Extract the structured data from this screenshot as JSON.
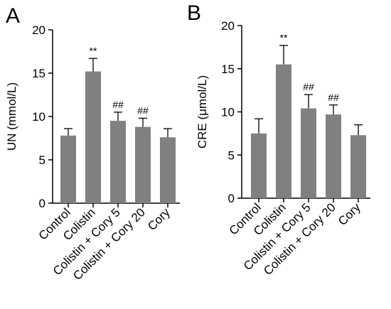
{
  "chart_data": [
    {
      "type": "bar",
      "panel_label": "A",
      "ylabel": "UN (mmol/L)",
      "ylim": [
        0,
        20
      ],
      "yticks": [
        0,
        5,
        10,
        15,
        20
      ],
      "categories": [
        "Control",
        "Colistin",
        "Colistin + Cory 5",
        "Colistin + Cory 20",
        "Cory"
      ],
      "values": [
        7.8,
        15.2,
        9.5,
        8.8,
        7.6
      ],
      "errors": [
        0.8,
        1.5,
        1.0,
        1.0,
        1.0
      ],
      "annotations": [
        "",
        "**",
        "##",
        "##",
        ""
      ],
      "bar_color": "#808080"
    },
    {
      "type": "bar",
      "panel_label": "B",
      "ylabel": "CRE (μmol/L)",
      "ylim": [
        0,
        20
      ],
      "yticks": [
        0,
        5,
        10,
        15,
        20
      ],
      "categories": [
        "Control",
        "Colistin",
        "Colistin + Cory 5",
        "Colistin + Cory 20",
        "Cory"
      ],
      "values": [
        7.5,
        15.5,
        10.4,
        9.7,
        7.3
      ],
      "errors": [
        1.7,
        2.2,
        1.6,
        1.1,
        1.2
      ],
      "annotations": [
        "",
        "**",
        "##",
        "##",
        ""
      ],
      "bar_color": "#808080"
    }
  ]
}
